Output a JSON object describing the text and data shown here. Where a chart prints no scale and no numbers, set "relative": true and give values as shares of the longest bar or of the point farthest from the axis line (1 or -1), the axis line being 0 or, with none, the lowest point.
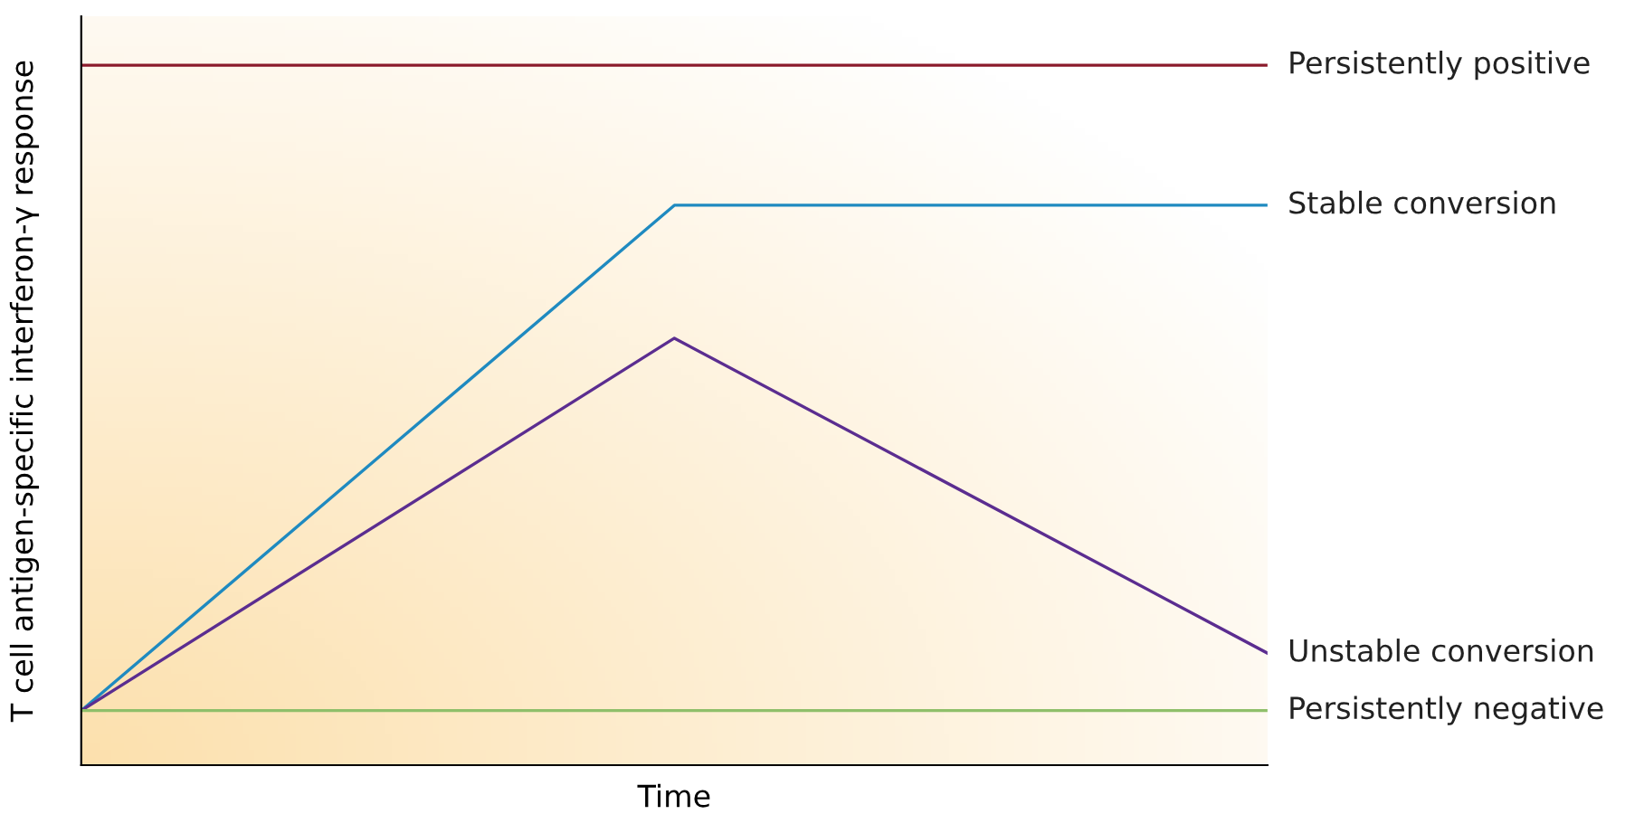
{
  "chart_data": {
    "type": "line",
    "relative": true,
    "xlabel": "Time",
    "ylabel": "T cell antigen-specific interferon-γ response",
    "categories": [
      null,
      null,
      null
    ],
    "series": [
      {
        "name": "Persistently positive",
        "color": "#8b1a2b",
        "values": [
          1,
          1,
          1
        ]
      },
      {
        "name": "Stable conversion",
        "color": "#1f8ac0",
        "values": [
          0.078,
          0.8,
          0.8
        ]
      },
      {
        "name": "Unstable conversion",
        "color": "#5b2d90",
        "values": [
          0.078,
          0.61,
          0.16
        ]
      },
      {
        "name": "Persistently negative",
        "color": "#8fbf6a",
        "values": [
          0.078,
          0.078,
          0.078
        ]
      }
    ],
    "grid": false,
    "legend": false,
    "marker": "none",
    "line_style": "solid"
  }
}
